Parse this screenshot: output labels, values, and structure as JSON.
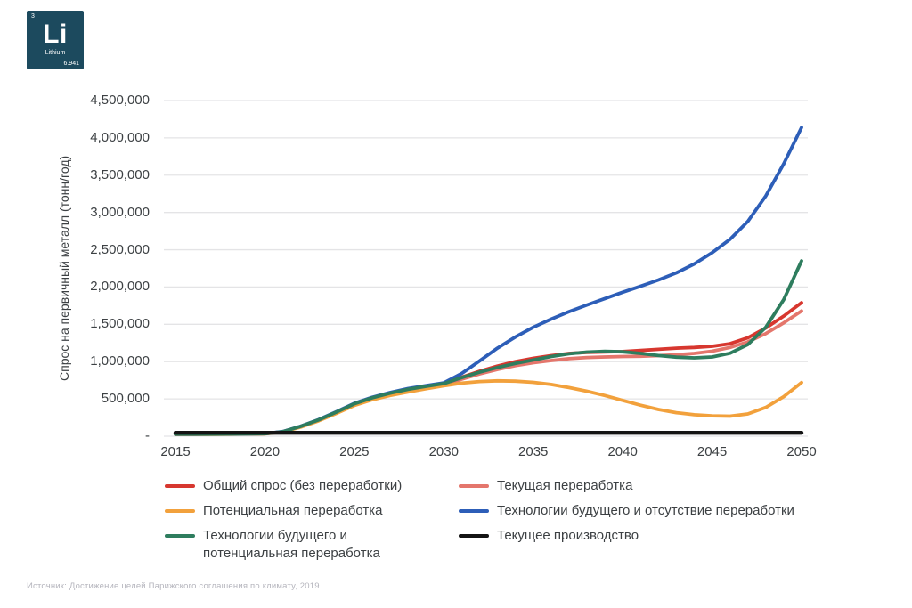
{
  "element_card": {
    "atomic_number": "3",
    "symbol": "Li",
    "name": "Lithium",
    "atomic_mass": "6.941",
    "background": "#1c4a5e"
  },
  "chart_data": {
    "type": "line",
    "title": "",
    "xlabel": "",
    "ylabel": "Спрос на первичный металл (тонн/год)",
    "ylim": [
      0,
      4500000
    ],
    "xlim": [
      2015,
      2050
    ],
    "grid": true,
    "gridline_color": "#e4e4e6",
    "legend_position": "bottom",
    "y_tick_labels": [
      "-",
      "500,000",
      "1,000,000",
      "1,500,000",
      "2,000,000",
      "2,500,000",
      "3,000,000",
      "3,500,000",
      "4,000,000",
      "4,500,000"
    ],
    "y_tick_values": [
      0,
      500000,
      1000000,
      1500000,
      2000000,
      2500000,
      3000000,
      3500000,
      4000000,
      4500000
    ],
    "x_tick_labels": [
      "2015",
      "2020",
      "2025",
      "2030",
      "2035",
      "2040",
      "2045",
      "2050"
    ],
    "x_tick_values": [
      2015,
      2020,
      2025,
      2030,
      2035,
      2040,
      2045,
      2050
    ],
    "x": [
      2015,
      2016,
      2017,
      2018,
      2019,
      2020,
      2021,
      2022,
      2023,
      2024,
      2025,
      2026,
      2027,
      2028,
      2029,
      2030,
      2031,
      2032,
      2033,
      2034,
      2035,
      2036,
      2037,
      2038,
      2039,
      2040,
      2041,
      2042,
      2043,
      2044,
      2045,
      2046,
      2047,
      2048,
      2049,
      2050
    ],
    "series": [
      {
        "name": "Текущая переработка",
        "color": "#e4766c",
        "width": 3.8,
        "values": [
          26000,
          26000,
          27000,
          28000,
          30000,
          33000,
          58000,
          126000,
          210000,
          312000,
          420000,
          498000,
          556000,
          605000,
          645000,
          685000,
          765000,
          835000,
          895000,
          945000,
          985000,
          1015000,
          1040000,
          1055000,
          1062000,
          1068000,
          1072000,
          1080000,
          1092000,
          1110000,
          1140000,
          1190000,
          1265000,
          1375000,
          1520000,
          1680000
        ]
      },
      {
        "name": "Общий спрос (без переработки)",
        "color": "#d7372f",
        "width": 3.8,
        "values": [
          28000,
          28000,
          29000,
          30000,
          32000,
          35000,
          60000,
          130000,
          215000,
          320000,
          430000,
          510000,
          570000,
          620000,
          660000,
          700000,
          790000,
          870000,
          940000,
          1000000,
          1045000,
          1080000,
          1110000,
          1125000,
          1130000,
          1135000,
          1150000,
          1165000,
          1180000,
          1190000,
          1205000,
          1240000,
          1320000,
          1450000,
          1610000,
          1790000
        ]
      },
      {
        "name": "Потенциальная переработка",
        "color": "#f2a13c",
        "width": 3.8,
        "values": [
          25000,
          25000,
          26000,
          27000,
          29000,
          32000,
          56000,
          122000,
          205000,
          305000,
          412000,
          488000,
          545000,
          592000,
          635000,
          675000,
          712000,
          733000,
          742000,
          738000,
          722000,
          693000,
          652000,
          603000,
          545000,
          480000,
          415000,
          358000,
          315000,
          288000,
          273000,
          268000,
          298000,
          385000,
          530000,
          720000
        ]
      },
      {
        "name": "Технологии будущего и отсутствие переработки",
        "color": "#2d5eb8",
        "width": 3.8,
        "values": [
          28000,
          28000,
          29000,
          30000,
          32000,
          35000,
          62000,
          134000,
          222000,
          328000,
          440000,
          522000,
          585000,
          638000,
          678000,
          715000,
          840000,
          1010000,
          1180000,
          1330000,
          1460000,
          1570000,
          1670000,
          1760000,
          1845000,
          1930000,
          2010000,
          2095000,
          2190000,
          2310000,
          2460000,
          2640000,
          2880000,
          3220000,
          3650000,
          4140000
        ]
      },
      {
        "name": "Технологии будущего и потенциальная переработка",
        "color": "#2e7d5e",
        "width": 3.8,
        "values": [
          27000,
          27000,
          28000,
          29000,
          31000,
          34000,
          60000,
          132000,
          218000,
          324000,
          435000,
          515000,
          577000,
          628000,
          668000,
          705000,
          785000,
          858000,
          922000,
          975000,
          1022000,
          1068000,
          1105000,
          1128000,
          1138000,
          1132000,
          1110000,
          1082000,
          1060000,
          1050000,
          1062000,
          1112000,
          1230000,
          1460000,
          1830000,
          2350000
        ]
      },
      {
        "name": "Текущее производство",
        "color": "#141414",
        "width": 4.4,
        "values": [
          45000,
          45000,
          45000,
          45000,
          45000,
          45000,
          45000,
          45000,
          45000,
          45000,
          45000,
          45000,
          45000,
          45000,
          45000,
          45000,
          45000,
          45000,
          45000,
          45000,
          45000,
          45000,
          45000,
          45000,
          45000,
          45000,
          45000,
          45000,
          45000,
          45000,
          45000,
          45000,
          45000,
          45000,
          45000,
          45000
        ]
      }
    ]
  },
  "legend": {
    "columns": [
      {
        "items": [
          {
            "label": "Общий спрос (без переработки)",
            "color": "#d7372f"
          },
          {
            "label": "Потенциальная переработка",
            "color": "#f2a13c"
          },
          {
            "label": "Технологии будущего и потенциальная переработка",
            "color": "#2e7d5e"
          }
        ]
      },
      {
        "items": [
          {
            "label": "Текущая переработка",
            "color": "#e4766c"
          },
          {
            "label": "Технологии будущего и отсутствие переработки",
            "color": "#2d5eb8"
          },
          {
            "label": "Текущее производство",
            "color": "#141414"
          }
        ]
      }
    ]
  },
  "source": "Источник: Достижение целей Парижского соглашения по климату, 2019"
}
